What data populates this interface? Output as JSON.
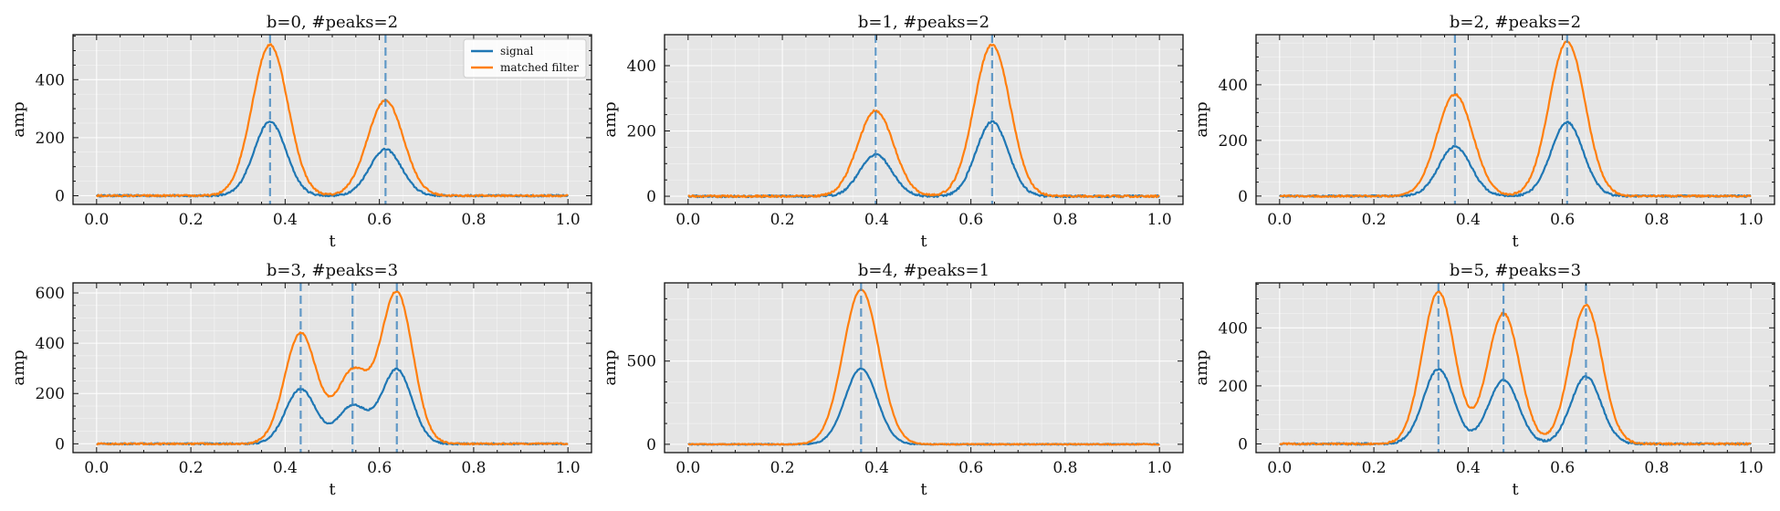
{
  "figure": {
    "shared_xlabel": "t",
    "shared_ylabel": "amp"
  },
  "legend": {
    "signal": "signal",
    "matched": "matched filter",
    "placement": "upper right of first panel"
  },
  "colors": {
    "signal": "#1f77b4",
    "matched": "#ff7f0e",
    "panel_bg": "#e5e5e5",
    "grid": "#ffffff"
  },
  "chart_data": [
    {
      "type": "line",
      "title": "b=0, #peaks=2",
      "xlabel": "t",
      "ylabel": "amp",
      "xlim": [
        -0.05,
        1.05
      ],
      "ylim": [
        -30,
        555
      ],
      "xticks": [
        0.0,
        0.2,
        0.4,
        0.6,
        0.8,
        1.0
      ],
      "xtick_labels": [
        "0.0",
        "0.2",
        "0.4",
        "0.6",
        "0.8",
        "1.0"
      ],
      "yticks": [
        0,
        200,
        400
      ],
      "ytick_labels": [
        "0",
        "200",
        "400"
      ],
      "grid": true,
      "legend": true,
      "peak_positions": [
        0.368,
        0.613
      ],
      "series": [
        {
          "name": "signal",
          "peaks": [
            {
              "x": 0.368,
              "amp": 255,
              "sigma": 0.034
            },
            {
              "x": 0.613,
              "amp": 160,
              "sigma": 0.034
            }
          ],
          "noise": 3
        },
        {
          "name": "matched filter",
          "peaks": [
            {
              "x": 0.368,
              "amp": 520,
              "sigma": 0.038
            },
            {
              "x": 0.613,
              "amp": 328,
              "sigma": 0.038
            }
          ],
          "noise": 3
        }
      ]
    },
    {
      "type": "line",
      "title": "b=1, #peaks=2",
      "xlabel": "t",
      "ylabel": "amp",
      "xlim": [
        -0.05,
        1.05
      ],
      "ylim": [
        -25,
        495
      ],
      "xticks": [
        0.0,
        0.2,
        0.4,
        0.6,
        0.8,
        1.0
      ],
      "xtick_labels": [
        "0.0",
        "0.2",
        "0.4",
        "0.6",
        "0.8",
        "1.0"
      ],
      "yticks": [
        0,
        200,
        400
      ],
      "ytick_labels": [
        "0",
        "200",
        "400"
      ],
      "grid": true,
      "legend": false,
      "peak_positions": [
        0.398,
        0.645
      ],
      "series": [
        {
          "name": "signal",
          "peaks": [
            {
              "x": 0.398,
              "amp": 128,
              "sigma": 0.034
            },
            {
              "x": 0.645,
              "amp": 228,
              "sigma": 0.034
            }
          ],
          "noise": 3
        },
        {
          "name": "matched filter",
          "peaks": [
            {
              "x": 0.398,
              "amp": 262,
              "sigma": 0.038
            },
            {
              "x": 0.645,
              "amp": 465,
              "sigma": 0.038
            }
          ],
          "noise": 3
        }
      ]
    },
    {
      "type": "line",
      "title": "b=2, #peaks=2",
      "xlabel": "t",
      "ylabel": "amp",
      "xlim": [
        -0.05,
        1.05
      ],
      "ylim": [
        -30,
        580
      ],
      "xticks": [
        0.0,
        0.2,
        0.4,
        0.6,
        0.8,
        1.0
      ],
      "xtick_labels": [
        "0.0",
        "0.2",
        "0.4",
        "0.6",
        "0.8",
        "1.0"
      ],
      "yticks": [
        0,
        200,
        400
      ],
      "ytick_labels": [
        "0",
        "200",
        "400"
      ],
      "grid": true,
      "legend": false,
      "peak_positions": [
        0.372,
        0.61
      ],
      "series": [
        {
          "name": "signal",
          "peaks": [
            {
              "x": 0.372,
              "amp": 178,
              "sigma": 0.034
            },
            {
              "x": 0.61,
              "amp": 265,
              "sigma": 0.034
            }
          ],
          "noise": 3
        },
        {
          "name": "matched filter",
          "peaks": [
            {
              "x": 0.372,
              "amp": 365,
              "sigma": 0.038
            },
            {
              "x": 0.61,
              "amp": 555,
              "sigma": 0.038
            }
          ],
          "noise": 3
        }
      ]
    },
    {
      "type": "line",
      "title": "b=3, #peaks=3",
      "xlabel": "t",
      "ylabel": "amp",
      "xlim": [
        -0.05,
        1.05
      ],
      "ylim": [
        -35,
        640
      ],
      "xticks": [
        0.0,
        0.2,
        0.4,
        0.6,
        0.8,
        1.0
      ],
      "xtick_labels": [
        "0.0",
        "0.2",
        "0.4",
        "0.6",
        "0.8",
        "1.0"
      ],
      "yticks": [
        0,
        200,
        400,
        600
      ],
      "ytick_labels": [
        "0",
        "200",
        "400",
        "600"
      ],
      "grid": true,
      "legend": false,
      "peak_positions": [
        0.433,
        0.543,
        0.637
      ],
      "series": [
        {
          "name": "signal",
          "peaks": [
            {
              "x": 0.433,
              "amp": 218,
              "sigma": 0.032
            },
            {
              "x": 0.543,
              "amp": 150,
              "sigma": 0.032
            },
            {
              "x": 0.637,
              "amp": 295,
              "sigma": 0.032
            }
          ],
          "noise": 3
        },
        {
          "name": "matched filter",
          "peaks": [
            {
              "x": 0.433,
              "amp": 440,
              "sigma": 0.034
            },
            {
              "x": 0.543,
              "amp": 285,
              "sigma": 0.034
            },
            {
              "x": 0.637,
              "amp": 600,
              "sigma": 0.034
            }
          ],
          "noise": 3
        }
      ]
    },
    {
      "type": "line",
      "title": "b=4, #peaks=1",
      "xlabel": "t",
      "ylabel": "amp",
      "xlim": [
        -0.05,
        1.05
      ],
      "ylim": [
        -50,
        970
      ],
      "xticks": [
        0.0,
        0.2,
        0.4,
        0.6,
        0.8,
        1.0
      ],
      "xtick_labels": [
        "0.0",
        "0.2",
        "0.4",
        "0.6",
        "0.8",
        "1.0"
      ],
      "yticks": [
        0,
        500
      ],
      "ytick_labels": [
        "0",
        "500"
      ],
      "grid": true,
      "legend": false,
      "peak_positions": [
        0.367
      ],
      "series": [
        {
          "name": "signal",
          "peaks": [
            {
              "x": 0.367,
              "amp": 455,
              "sigma": 0.034
            }
          ],
          "noise": 3
        },
        {
          "name": "matched filter",
          "peaks": [
            {
              "x": 0.367,
              "amp": 930,
              "sigma": 0.038
            }
          ],
          "noise": 3
        }
      ]
    },
    {
      "type": "line",
      "title": "b=5, #peaks=3",
      "xlabel": "t",
      "ylabel": "amp",
      "xlim": [
        -0.05,
        1.05
      ],
      "ylim": [
        -30,
        555
      ],
      "xticks": [
        0.0,
        0.2,
        0.4,
        0.6,
        0.8,
        1.0
      ],
      "xtick_labels": [
        "0.0",
        "0.2",
        "0.4",
        "0.6",
        "0.8",
        "1.0"
      ],
      "yticks": [
        0,
        200,
        400
      ],
      "ytick_labels": [
        "0",
        "200",
        "400"
      ],
      "grid": true,
      "legend": false,
      "peak_positions": [
        0.337,
        0.475,
        0.65
      ],
      "series": [
        {
          "name": "signal",
          "peaks": [
            {
              "x": 0.337,
              "amp": 258,
              "sigma": 0.032
            },
            {
              "x": 0.475,
              "amp": 220,
              "sigma": 0.032
            },
            {
              "x": 0.65,
              "amp": 232,
              "sigma": 0.032
            }
          ],
          "noise": 3
        },
        {
          "name": "matched filter",
          "peaks": [
            {
              "x": 0.337,
              "amp": 525,
              "sigma": 0.034
            },
            {
              "x": 0.475,
              "amp": 450,
              "sigma": 0.034
            },
            {
              "x": 0.65,
              "amp": 478,
              "sigma": 0.034
            }
          ],
          "noise": 3
        }
      ]
    }
  ]
}
